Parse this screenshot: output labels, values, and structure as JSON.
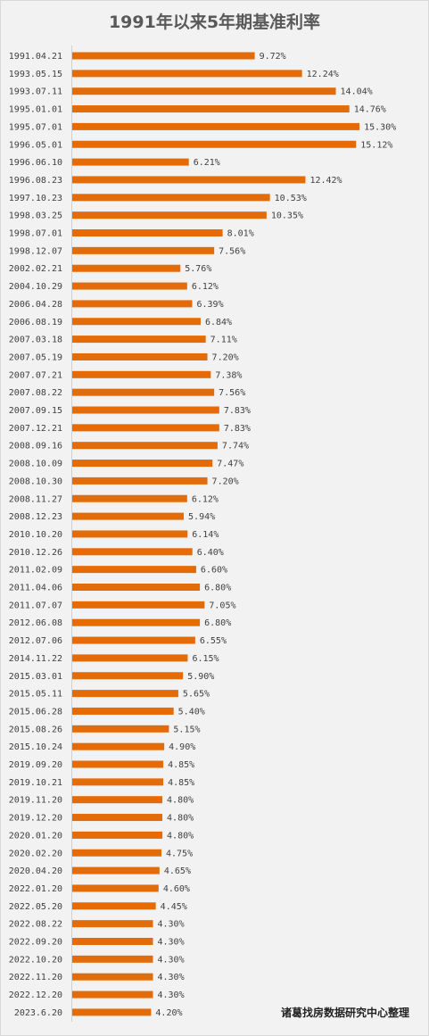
{
  "chart_data": {
    "type": "bar",
    "orientation": "horizontal",
    "title": "1991年以来5年期基准利率",
    "categories": [
      "1991.04.21",
      "1993.05.15",
      "1993.07.11",
      "1995.01.01",
      "1995.07.01",
      "1996.05.01",
      "1996.06.10",
      "1996.08.23",
      "1997.10.23",
      "1998.03.25",
      "1998.07.01",
      "1998.12.07",
      "2002.02.21",
      "2004.10.29",
      "2006.04.28",
      "2006.08.19",
      "2007.03.18",
      "2007.05.19",
      "2007.07.21",
      "2007.08.22",
      "2007.09.15",
      "2007.12.21",
      "2008.09.16",
      "2008.10.09",
      "2008.10.30",
      "2008.11.27",
      "2008.12.23",
      "2010.10.20",
      "2010.12.26",
      "2011.02.09",
      "2011.04.06",
      "2011.07.07",
      "2012.06.08",
      "2012.07.06",
      "2014.11.22",
      "2015.03.01",
      "2015.05.11",
      "2015.06.28",
      "2015.08.26",
      "2015.10.24",
      "2019.09.20",
      "2019.10.21",
      "2019.11.20",
      "2019.12.20",
      "2020.01.20",
      "2020.02.20",
      "2020.04.20",
      "2022.01.20",
      "2022.05.20",
      "2022.08.22",
      "2022.09.20",
      "2022.10.20",
      "2022.11.20",
      "2022.12.20",
      "2023.6.20"
    ],
    "values": [
      9.72,
      12.24,
      14.04,
      14.76,
      15.3,
      15.12,
      6.21,
      12.42,
      10.53,
      10.35,
      8.01,
      7.56,
      5.76,
      6.12,
      6.39,
      6.84,
      7.11,
      7.2,
      7.38,
      7.56,
      7.83,
      7.83,
      7.74,
      7.47,
      7.2,
      6.12,
      5.94,
      6.14,
      6.4,
      6.6,
      6.8,
      7.05,
      6.8,
      6.55,
      6.15,
      5.9,
      5.65,
      5.4,
      5.15,
      4.9,
      4.85,
      4.85,
      4.8,
      4.8,
      4.8,
      4.75,
      4.65,
      4.6,
      4.45,
      4.3,
      4.3,
      4.3,
      4.3,
      4.3,
      4.2
    ],
    "labels": [
      "9.72%",
      "12.24%",
      "14.04%",
      "14.76%",
      "15.30%",
      "15.12%",
      "6.21%",
      "12.42%",
      "10.53%",
      "10.35%",
      "8.01%",
      "7.56%",
      "5.76%",
      "6.12%",
      "6.39%",
      "6.84%",
      "7.11%",
      "7.20%",
      "7.38%",
      "7.56%",
      "7.83%",
      "7.83%",
      "7.74%",
      "7.47%",
      "7.20%",
      "6.12%",
      "5.94%",
      "6.14%",
      "6.40%",
      "6.60%",
      "6.80%",
      "7.05%",
      "6.80%",
      "6.55%",
      "6.15%",
      "5.90%",
      "5.65%",
      "5.40%",
      "5.15%",
      "4.90%",
      "4.85%",
      "4.85%",
      "4.80%",
      "4.80%",
      "4.80%",
      "4.75%",
      "4.65%",
      "4.60%",
      "4.45%",
      "4.30%",
      "4.30%",
      "4.30%",
      "4.30%",
      "4.30%",
      "4.20%"
    ],
    "bar_color": "#e36c09",
    "grid": false,
    "legend": "none"
  },
  "credit": "诸葛找房数据研究中心整理"
}
